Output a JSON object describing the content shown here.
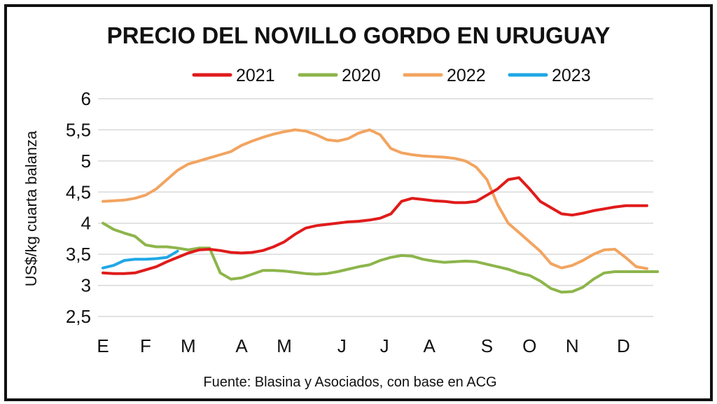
{
  "chart_data": {
    "type": "line",
    "title": "PRECIO DEL NOVILLO GORDO EN URUGUAY",
    "ylabel": "US$/kg cuarta balanza",
    "xlabel": "",
    "source": "Fuente: Blasina y Asociados, con base en ACG",
    "ylim": [
      2.5,
      6
    ],
    "xlim": [
      0,
      12.5
    ],
    "yticks": [
      {
        "value": 2.5,
        "label": "2,5"
      },
      {
        "value": 3,
        "label": "3"
      },
      {
        "value": 3.5,
        "label": "3,5"
      },
      {
        "value": 4,
        "label": "4"
      },
      {
        "value": 4.5,
        "label": "4,5"
      },
      {
        "value": 5,
        "label": "5"
      },
      {
        "value": 5.5,
        "label": "5,5"
      },
      {
        "value": 6,
        "label": "6"
      }
    ],
    "month_labels": [
      "E",
      "F",
      "M",
      "A",
      "M",
      "J",
      "J",
      "A",
      "S",
      "O",
      "N",
      "D"
    ],
    "month_positions": [
      0,
      1,
      2,
      3.25,
      4.25,
      5.6,
      6.6,
      7.65,
      9.0,
      10.0,
      11.0,
      12.2
    ],
    "legend_position": "top",
    "series": [
      {
        "name": "2021",
        "color": "#e01b1b",
        "x": [
          0,
          0.25,
          0.5,
          0.75,
          1,
          1.25,
          1.5,
          1.75,
          2,
          2.25,
          2.5,
          2.75,
          3,
          3.25,
          3.5,
          3.75,
          4,
          4.25,
          4.5,
          4.75,
          5,
          5.25,
          5.5,
          5.75,
          6,
          6.25,
          6.5,
          6.75,
          7,
          7.25,
          7.5,
          7.75,
          8,
          8.25,
          8.5,
          8.75,
          9,
          9.25,
          9.5,
          9.75,
          10,
          10.25,
          10.5,
          10.75,
          11,
          11.25,
          11.5,
          11.75,
          12,
          12.25,
          12.5,
          12.75
        ],
        "values": [
          3.2,
          3.19,
          3.19,
          3.2,
          3.25,
          3.3,
          3.38,
          3.45,
          3.52,
          3.57,
          3.58,
          3.56,
          3.53,
          3.52,
          3.53,
          3.56,
          3.62,
          3.7,
          3.82,
          3.92,
          3.96,
          3.98,
          4.0,
          4.02,
          4.03,
          4.05,
          4.08,
          4.15,
          4.35,
          4.4,
          4.38,
          4.36,
          4.35,
          4.33,
          4.33,
          4.35,
          4.45,
          4.55,
          4.7,
          4.73,
          4.55,
          4.35,
          4.25,
          4.15,
          4.13,
          4.16,
          4.2,
          4.23,
          4.26,
          4.28,
          4.28,
          4.28
        ]
      },
      {
        "name": "2020",
        "color": "#8db54b",
        "x": [
          0,
          0.25,
          0.5,
          0.75,
          1,
          1.25,
          1.5,
          1.75,
          2,
          2.25,
          2.5,
          2.75,
          3,
          3.25,
          3.5,
          3.75,
          4,
          4.25,
          4.5,
          4.75,
          5,
          5.25,
          5.5,
          5.75,
          6,
          6.25,
          6.5,
          6.75,
          7,
          7.25,
          7.5,
          7.75,
          8,
          8.25,
          8.5,
          8.75,
          9,
          9.25,
          9.5,
          9.75,
          10,
          10.25,
          10.5,
          10.75,
          11,
          11.25,
          11.5,
          11.75,
          12,
          12.25,
          12.5,
          12.75,
          13
        ],
        "values": [
          4.0,
          3.9,
          3.84,
          3.79,
          3.65,
          3.62,
          3.62,
          3.6,
          3.57,
          3.6,
          3.6,
          3.2,
          3.1,
          3.12,
          3.18,
          3.24,
          3.24,
          3.23,
          3.21,
          3.19,
          3.18,
          3.19,
          3.22,
          3.26,
          3.3,
          3.33,
          3.4,
          3.45,
          3.48,
          3.47,
          3.42,
          3.39,
          3.37,
          3.38,
          3.39,
          3.38,
          3.34,
          3.3,
          3.26,
          3.2,
          3.16,
          3.07,
          2.95,
          2.89,
          2.9,
          2.97,
          3.1,
          3.2,
          3.22,
          3.22,
          3.22,
          3.22,
          3.22
        ]
      },
      {
        "name": "2022",
        "color": "#f2a460",
        "x": [
          0,
          0.25,
          0.5,
          0.75,
          1,
          1.25,
          1.5,
          1.75,
          2,
          2.25,
          2.5,
          2.75,
          3,
          3.25,
          3.5,
          3.75,
          4,
          4.25,
          4.5,
          4.75,
          5,
          5.25,
          5.5,
          5.75,
          6,
          6.25,
          6.5,
          6.75,
          7,
          7.25,
          7.5,
          7.75,
          8,
          8.25,
          8.5,
          8.75,
          9,
          9.25,
          9.5,
          9.75,
          10,
          10.25,
          10.5,
          10.75,
          11,
          11.25,
          11.5,
          11.75,
          12,
          12.25,
          12.5,
          12.75
        ],
        "values": [
          4.35,
          4.36,
          4.37,
          4.4,
          4.45,
          4.55,
          4.7,
          4.85,
          4.95,
          5.0,
          5.05,
          5.1,
          5.15,
          5.25,
          5.32,
          5.38,
          5.43,
          5.47,
          5.5,
          5.48,
          5.42,
          5.34,
          5.32,
          5.36,
          5.45,
          5.5,
          5.42,
          5.2,
          5.13,
          5.1,
          5.08,
          5.07,
          5.06,
          5.04,
          5.0,
          4.9,
          4.7,
          4.3,
          4.0,
          3.85,
          3.7,
          3.55,
          3.35,
          3.28,
          3.32,
          3.4,
          3.5,
          3.57,
          3.58,
          3.45,
          3.3,
          3.27
        ]
      },
      {
        "name": "2023",
        "color": "#1fa7e6",
        "x": [
          0,
          0.25,
          0.5,
          0.75,
          1,
          1.25,
          1.5,
          1.75
        ],
        "values": [
          3.28,
          3.32,
          3.4,
          3.42,
          3.42,
          3.43,
          3.45,
          3.55
        ]
      }
    ],
    "legend_order": [
      "2021",
      "2020",
      "2022",
      "2023"
    ]
  }
}
